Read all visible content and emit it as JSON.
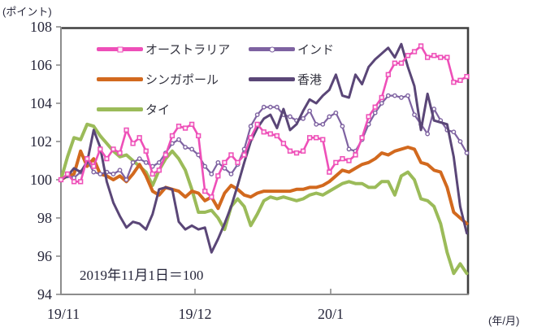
{
  "chart_data": {
    "type": "line",
    "title": "",
    "y_axis": {
      "label": "(ポイント)",
      "min": 94,
      "max": 108,
      "tick_step": 2,
      "ticks": [
        108,
        106,
        104,
        102,
        100,
        98,
        96,
        94
      ]
    },
    "x_axis": {
      "label": "(年/月)",
      "ticks": [
        "19/11",
        "19/12",
        "20/1"
      ]
    },
    "annotation": "2019年11月1日＝100",
    "legend_position": "top-inside-two-columns",
    "border_color": "#3f3f3f",
    "axis_color": "#8c8c8c",
    "series": [
      {
        "name": "オーストラリア",
        "color": "#ee4fb8",
        "marker": "square",
        "values": [
          100,
          100.3,
          99.9,
          99.9,
          101.1,
          100.7,
          101.6,
          101.1,
          101.6,
          101.4,
          102.6,
          101.9,
          102.2,
          101.5,
          100.3,
          100.5,
          101.3,
          102.3,
          102.8,
          102.7,
          102.9,
          102.3,
          99.4,
          99.1,
          100.2,
          100.9,
          101.3,
          100.9,
          101.3,
          102.2,
          102.9,
          102.5,
          102.4,
          102.3,
          101.9,
          101.5,
          101.4,
          101.5,
          102.2,
          102.2,
          102.1,
          100.4,
          100.9,
          101.1,
          101,
          101.3,
          102.2,
          103.3,
          103.8,
          104.3,
          105.5,
          106.1,
          106.1,
          106.5,
          106.7,
          107,
          106.4,
          106.5,
          106.4,
          106.4,
          105.1,
          105.2,
          105.4
        ]
      },
      {
        "name": "シンガポール",
        "color": "#d2691e",
        "marker": "none",
        "values": [
          100,
          100.2,
          100.3,
          101.5,
          100.7,
          101.1,
          100.3,
          100.2,
          100,
          100.2,
          99.9,
          100.3,
          100.8,
          100.2,
          99.4,
          99.2,
          99.6,
          99.5,
          99.4,
          99.1,
          99.4,
          99.3,
          98.9,
          99.1,
          98.5,
          99.3,
          99.7,
          99.5,
          99.2,
          99.1,
          99.3,
          99.4,
          99.4,
          99.4,
          99.4,
          99.4,
          99.5,
          99.5,
          99.6,
          99.6,
          99.7,
          99.9,
          100.2,
          100.5,
          100.4,
          100.6,
          100.8,
          100.9,
          101.1,
          101.4,
          101.3,
          101.5,
          101.6,
          101.7,
          101.6,
          100.9,
          100.8,
          100.5,
          100.4,
          99.6,
          98.3,
          98,
          97.7
        ]
      },
      {
        "name": "タイ",
        "color": "#9bbb59",
        "marker": "none",
        "values": [
          100,
          101.2,
          102.2,
          102.1,
          102.9,
          102.8,
          102.3,
          101.9,
          101.5,
          101.2,
          101.3,
          101,
          100.7,
          100.4,
          99.7,
          100.5,
          101.1,
          101.5,
          101.1,
          100.5,
          99.5,
          98.3,
          98.3,
          98.4,
          98,
          97.4,
          98.6,
          99,
          98.6,
          97.6,
          98.2,
          98.9,
          99.1,
          99,
          99.1,
          99,
          98.9,
          99,
          99.2,
          99.3,
          99.2,
          99.4,
          99.6,
          99.8,
          99.9,
          99.8,
          99.8,
          99.6,
          99.6,
          99.9,
          99.9,
          99.2,
          100.2,
          100.4,
          100,
          99,
          98.9,
          98.6,
          97.7,
          96.2,
          95.1,
          95.6,
          95.1
        ]
      },
      {
        "name": "インド",
        "color": "#7e62a1",
        "marker": "circle",
        "values": [
          100,
          100.2,
          100.1,
          100.4,
          101,
          100.4,
          100.3,
          100.4,
          100.3,
          100.5,
          100,
          100.9,
          101.1,
          100.9,
          100.7,
          100.9,
          101.4,
          101.9,
          102.1,
          101.7,
          101.6,
          101.3,
          100.7,
          100.3,
          100.9,
          100.6,
          100.3,
          100.8,
          101.6,
          102.8,
          103.4,
          103.8,
          103.8,
          103.8,
          103.4,
          103.3,
          103.1,
          103.2,
          103.6,
          102.9,
          102.9,
          103.3,
          103.5,
          102.8,
          101.6,
          101.5,
          102.1,
          102.9,
          103.5,
          104,
          104.4,
          104.4,
          104.3,
          104.4,
          103.4,
          102.9,
          102.4,
          103.7,
          103.1,
          102.6,
          102.5,
          102,
          101.4
        ]
      },
      {
        "name": "香港",
        "color": "#5a4677",
        "marker": "none",
        "values": [
          100,
          100.2,
          100.6,
          100.4,
          100.9,
          102.6,
          101.7,
          99.9,
          98.8,
          98.1,
          97.5,
          97.8,
          97.7,
          97.4,
          98.2,
          99.5,
          99.6,
          99.5,
          97.8,
          97.4,
          97.6,
          97.4,
          97.5,
          96.2,
          96.9,
          97.7,
          98.6,
          99.7,
          100.9,
          102,
          102.7,
          103.2,
          103.4,
          102.7,
          103.7,
          102.6,
          102.9,
          103.6,
          104.2,
          104,
          104.4,
          104.7,
          105.5,
          104.4,
          104.3,
          105.5,
          105,
          105.9,
          106.3,
          106.6,
          106.9,
          106.4,
          107.1,
          105.9,
          104.9,
          102.6,
          104.5,
          103.1,
          103,
          102.9,
          101.2,
          98.6,
          97.2
        ]
      }
    ]
  }
}
